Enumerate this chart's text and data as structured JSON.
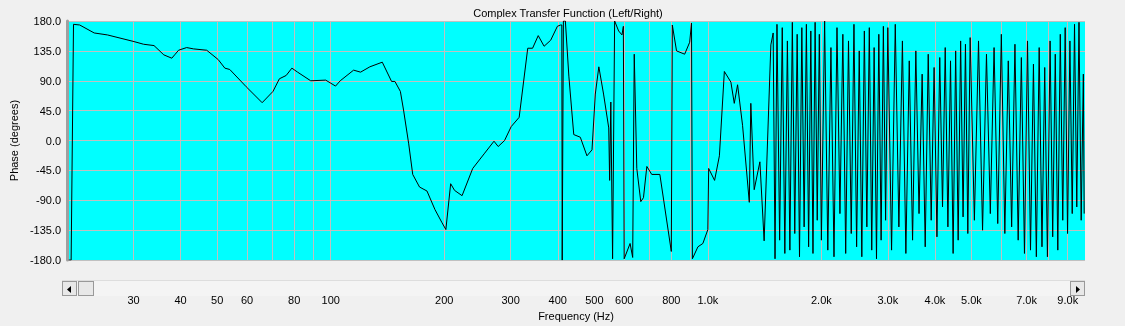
{
  "chart_data": {
    "type": "line",
    "title": "Complex Transfer Function (Left/Right)",
    "xlabel": "Frequency (Hz)",
    "ylabel": "Phase (degrees)",
    "log": "x",
    "grid": true,
    "marker": "none",
    "line_style": "solid",
    "xlim": [
      20,
      10000
    ],
    "xticks": [
      30,
      40,
      50,
      60,
      {
        "value": 70,
        "label": null
      },
      80,
      {
        "value": 90,
        "label": null
      },
      100,
      200,
      300,
      400,
      500,
      600,
      {
        "value": 700,
        "label": null
      },
      800,
      {
        "value": 900,
        "label": null
      },
      {
        "value": 1000,
        "label": "1.0k"
      },
      {
        "value": 2000,
        "label": "2.0k"
      },
      {
        "value": 3000,
        "label": "3.0k"
      },
      {
        "value": 4000,
        "label": "4.0k"
      },
      {
        "value": 5000,
        "label": "5.0k"
      },
      {
        "value": 6000,
        "label": null
      },
      {
        "value": 7000,
        "label": "7.0k"
      },
      {
        "value": 8000,
        "label": null
      },
      {
        "value": 9000,
        "label": "9.0k"
      }
    ],
    "ylim": [
      -180,
      180
    ],
    "yticks": [
      {
        "value": -180,
        "label": "-180.0"
      },
      {
        "value": -135,
        "label": "-135.0"
      },
      {
        "value": -90,
        "label": "-90.0"
      },
      {
        "value": -45,
        "label": "-45.0"
      },
      {
        "value": 0,
        "label": "0.0"
      },
      {
        "value": 45,
        "label": "45.0"
      },
      {
        "value": 90,
        "label": "90.0"
      },
      {
        "value": 135,
        "label": "135.0"
      },
      {
        "value": 180,
        "label": "180.0"
      }
    ],
    "series": [
      {
        "color": "#000000",
        "x": [
          20.2,
          20.5,
          20.8,
          21.6,
          23.6,
          25.6,
          30.1,
          31.9,
          34.0,
          36.1,
          37.9,
          38.7,
          39.5,
          41.5,
          43.3,
          46.9,
          50.3,
          52.4,
          54.0,
          59.7,
          65.8,
          70.3,
          73.1,
          76.2,
          78.9,
          81.7,
          88.5,
          97,
          103,
          106,
          115,
          120,
          127,
          137,
          145,
          148,
          153,
          156,
          161,
          165,
          172,
          180,
          189,
          197,
          202,
          208,
          213,
          223,
          238,
          256,
          271,
          278,
          289,
          301,
          316,
          333,
          343,
          355,
          368,
          383,
          399,
          407,
          410,
          411,
          414,
          419,
          428,
          441,
          459,
          478,
          493,
          503,
          514,
          529,
          546,
          549,
          553,
          559,
          566,
          580,
          592,
          597,
          600,
          622,
          632,
          638,
          648,
          664,
          675,
          689,
          710,
          746,
          800,
          805,
          826,
          868,
          895,
          905,
          910,
          941,
          970,
          1000,
          1005,
          1042,
          1073,
          1106,
          1151,
          1175,
          1199,
          1236,
          1288,
          1300,
          1327,
          1374,
          1410,
          1469,
          1490,
          1507,
          1525,
          1550,
          1575,
          1600,
          1625,
          1650,
          1675,
          1700,
          1725,
          1750,
          1775,
          1800,
          1825,
          1850,
          1875,
          1900,
          1925,
          1950,
          1975,
          2000,
          2040,
          2080,
          2120,
          2160,
          2200,
          2240,
          2280,
          2320,
          2360,
          2400,
          2440,
          2480,
          2520,
          2560,
          2600,
          2640,
          2680,
          2720,
          2760,
          2800,
          2840,
          2880,
          2920,
          2960,
          3000,
          3070,
          3140,
          3210,
          3280,
          3350,
          3420,
          3490,
          3560,
          3630,
          3700,
          3770,
          3840,
          3910,
          3980,
          4050,
          4120,
          4190,
          4260,
          4330,
          4400,
          4470,
          4540,
          4610,
          4680,
          4750,
          4820,
          4890,
          4960,
          5090,
          5220,
          5350,
          5480,
          5610,
          5740,
          5870,
          6000,
          6130,
          6260,
          6390,
          6520,
          6650,
          6780,
          6910,
          7040,
          7170,
          7300,
          7430,
          7560,
          7690,
          7820,
          7950,
          8080,
          8210,
          8340,
          8470,
          8600,
          8730,
          8860,
          8990,
          9120,
          9250,
          9380,
          9510,
          9640,
          9770,
          9900,
          9950
        ],
        "values": [
          -180,
          -180,
          175,
          174,
          162,
          159,
          149,
          145,
          143,
          129,
          124,
          130,
          136,
          140,
          138,
          136,
          122,
          109,
          107,
          81,
          57,
          74,
          93,
          98,
          109,
          103,
          90,
          91,
          82,
          90,
          106,
          103,
          111,
          118,
          89,
          89,
          74,
          46,
          -5,
          -51,
          -70,
          -76,
          -104,
          -123,
          -134,
          -65,
          -75,
          -83,
          -42,
          -19,
          -1,
          -9,
          0,
          21,
          35,
          139,
          139,
          158,
          142,
          151,
          172,
          174,
          174,
          -180,
          180,
          180,
          97,
          9,
          5,
          -23,
          -14,
          70,
          111,
          70,
          19,
          -60,
          58,
          -178,
          180,
          165,
          159,
          172,
          -178,
          -155,
          -176,
          130,
          -42,
          -92,
          -86,
          -39,
          -51,
          -51,
          -167,
          174,
          135,
          130,
          148,
          177,
          -178,
          -160,
          -155,
          -134,
          -42,
          -60,
          -23,
          104,
          88,
          56,
          84,
          23,
          -93,
          56,
          -74,
          -32,
          -151,
          144,
          162,
          -178,
          175,
          -150,
          170,
          -170,
          150,
          -165,
          178,
          -140,
          160,
          -175,
          170,
          -130,
          175,
          -160,
          165,
          -170,
          178,
          -120,
          160,
          -150,
          180,
          -165,
          140,
          -175,
          170,
          -110,
          160,
          -170,
          150,
          -140,
          175,
          -160,
          135,
          -175,
          165,
          -130,
          170,
          -165,
          140,
          -178,
          160,
          -150,
          172,
          -120,
          170,
          -165,
          175,
          -130,
          150,
          -170,
          120,
          -150,
          135,
          -110,
          100,
          -160,
          130,
          -120,
          110,
          -145,
          125,
          -100,
          140,
          -130,
          120,
          -170,
          135,
          -150,
          150,
          -115,
          145,
          -140,
          155,
          -120,
          150,
          -135,
          130,
          -110,
          140,
          -125,
          160,
          -140,
          120,
          -130,
          145,
          -150,
          125,
          -170,
          150,
          -165,
          115,
          -175,
          140,
          -160,
          110,
          -175,
          150,
          -145,
          130,
          -165,
          160,
          -120,
          170,
          -140,
          150,
          -110,
          175,
          -100,
          178,
          -120,
          100,
          -110
        ]
      }
    ]
  }
}
